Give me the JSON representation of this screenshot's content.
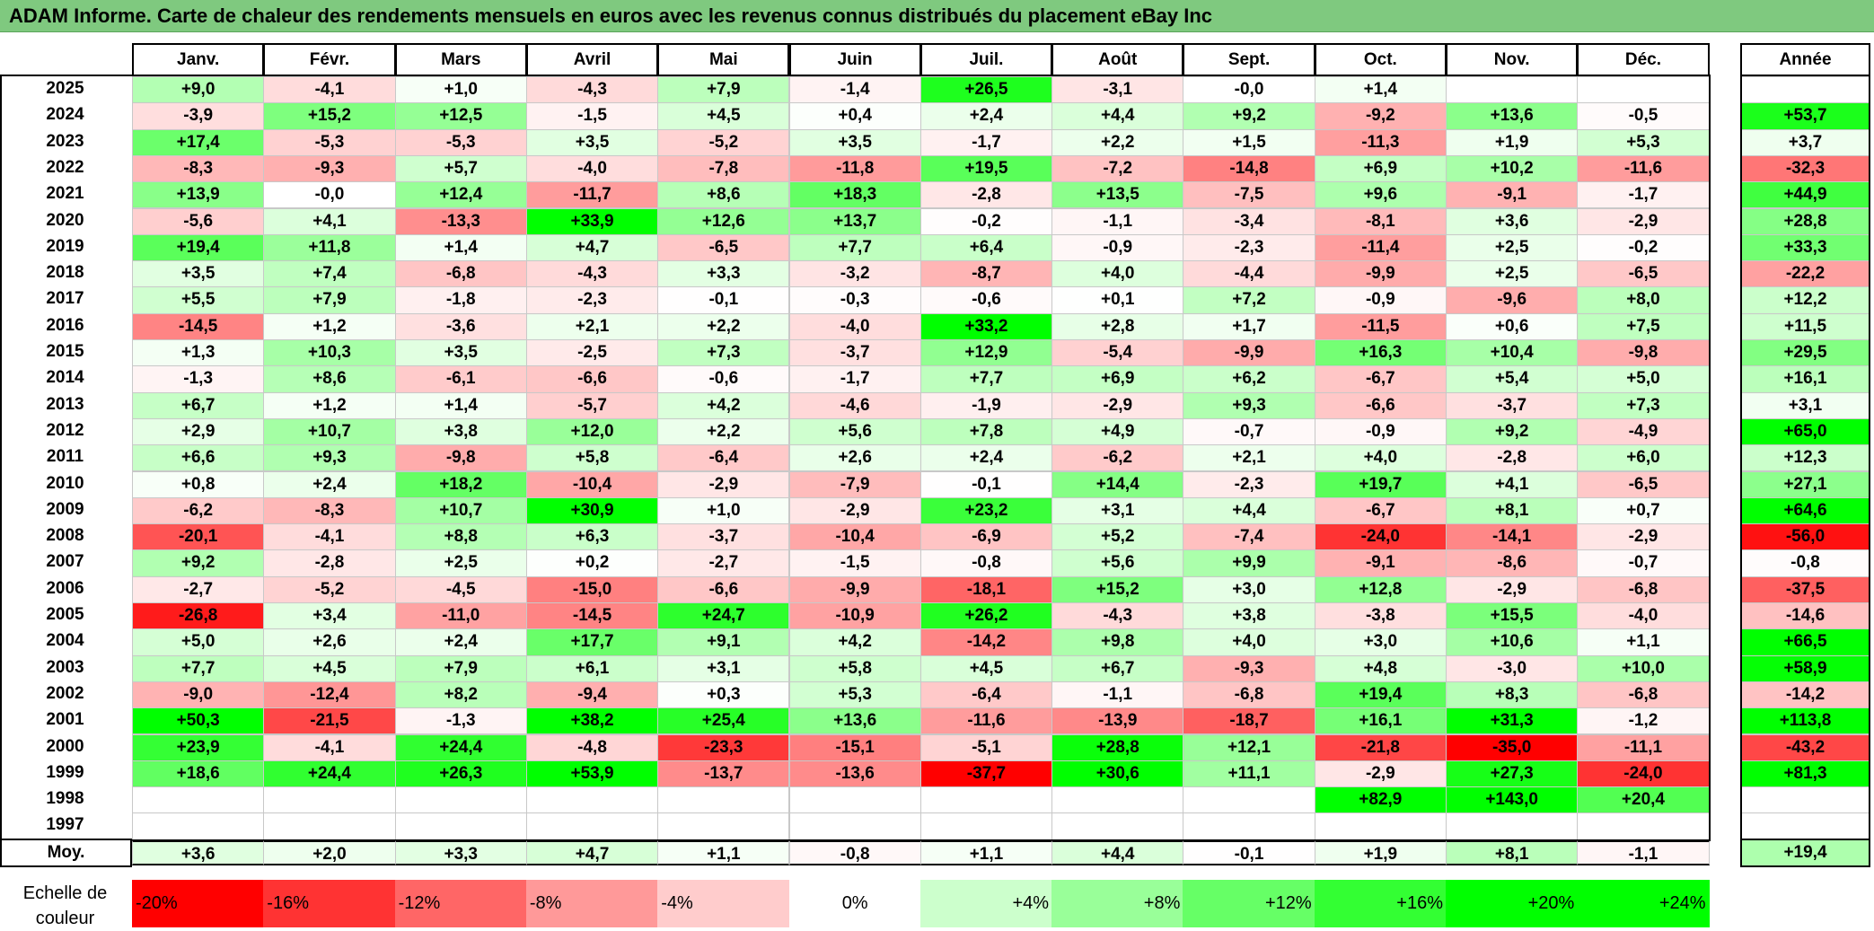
{
  "title": "ADAM Informe. Carte de chaleur des rendements mensuels en euros avec les revenus connus distribués du placement eBay Inc",
  "chart_data": {
    "type": "heatmap",
    "columns": [
      "Janv.",
      "Févr.",
      "Mars",
      "Avril",
      "Mai",
      "Juin",
      "Juil.",
      "Août",
      "Sept.",
      "Oct.",
      "Nov.",
      "Déc."
    ],
    "annual_label": "Année",
    "rows": [
      {
        "year": "2025",
        "values": [
          "+9,0",
          "-4,1",
          "+1,0",
          "-4,3",
          "+7,9",
          "-1,4",
          "+26,5",
          "-3,1",
          "-0,0",
          "+1,4",
          "",
          ""
        ],
        "annual": ""
      },
      {
        "year": "2024",
        "values": [
          "-3,9",
          "+15,2",
          "+12,5",
          "-1,5",
          "+4,5",
          "+0,4",
          "+2,4",
          "+4,4",
          "+9,2",
          "-9,2",
          "+13,6",
          "-0,5"
        ],
        "annual": "+53,7"
      },
      {
        "year": "2023",
        "values": [
          "+17,4",
          "-5,3",
          "-5,3",
          "+3,5",
          "-5,2",
          "+3,5",
          "-1,7",
          "+2,2",
          "+1,5",
          "-11,3",
          "+1,9",
          "+5,3"
        ],
        "annual": "+3,7"
      },
      {
        "year": "2022",
        "values": [
          "-8,3",
          "-9,3",
          "+5,7",
          "-4,0",
          "-7,8",
          "-11,8",
          "+19,5",
          "-7,2",
          "-14,8",
          "+6,9",
          "+10,2",
          "-11,6"
        ],
        "annual": "-32,3"
      },
      {
        "year": "2021",
        "values": [
          "+13,9",
          "-0,0",
          "+12,4",
          "-11,7",
          "+8,6",
          "+18,3",
          "-2,8",
          "+13,5",
          "-7,5",
          "+9,6",
          "-9,1",
          "-1,7"
        ],
        "annual": "+44,9"
      },
      {
        "year": "2020",
        "values": [
          "-5,6",
          "+4,1",
          "-13,3",
          "+33,9",
          "+12,6",
          "+13,7",
          "-0,2",
          "-1,1",
          "-3,4",
          "-8,1",
          "+3,6",
          "-2,9"
        ],
        "annual": "+28,8"
      },
      {
        "year": "2019",
        "values": [
          "+19,4",
          "+11,8",
          "+1,4",
          "+4,7",
          "-6,5",
          "+7,7",
          "+6,4",
          "-0,9",
          "-2,3",
          "-11,4",
          "+2,5",
          "-0,2"
        ],
        "annual": "+33,3"
      },
      {
        "year": "2018",
        "values": [
          "+3,5",
          "+7,4",
          "-6,8",
          "-4,3",
          "+3,3",
          "-3,2",
          "-8,7",
          "+4,0",
          "-4,4",
          "-9,9",
          "+2,5",
          "-6,5"
        ],
        "annual": "-22,2"
      },
      {
        "year": "2017",
        "values": [
          "+5,5",
          "+7,9",
          "-1,8",
          "-2,3",
          "-0,1",
          "-0,3",
          "-0,6",
          "+0,1",
          "+7,2",
          "-0,9",
          "-9,6",
          "+8,0"
        ],
        "annual": "+12,2"
      },
      {
        "year": "2016",
        "values": [
          "-14,5",
          "+1,2",
          "-3,6",
          "+2,1",
          "+2,2",
          "-4,0",
          "+33,2",
          "+2,8",
          "+1,7",
          "-11,5",
          "+0,6",
          "+7,5"
        ],
        "annual": "+11,5"
      },
      {
        "year": "2015",
        "values": [
          "+1,3",
          "+10,3",
          "+3,5",
          "-2,5",
          "+7,3",
          "-3,7",
          "+12,9",
          "-5,4",
          "-9,9",
          "+16,3",
          "+10,4",
          "-9,8"
        ],
        "annual": "+29,5"
      },
      {
        "year": "2014",
        "values": [
          "-1,3",
          "+8,6",
          "-6,1",
          "-6,6",
          "-0,6",
          "-1,7",
          "+7,7",
          "+6,9",
          "+6,2",
          "-6,7",
          "+5,4",
          "+5,0"
        ],
        "annual": "+16,1"
      },
      {
        "year": "2013",
        "values": [
          "+6,7",
          "+1,2",
          "+1,4",
          "-5,7",
          "+4,2",
          "-4,6",
          "-1,9",
          "-2,9",
          "+9,3",
          "-6,6",
          "-3,7",
          "+7,3"
        ],
        "annual": "+3,1"
      },
      {
        "year": "2012",
        "values": [
          "+2,9",
          "+10,7",
          "+3,8",
          "+12,0",
          "+2,2",
          "+5,6",
          "+7,8",
          "+4,9",
          "-0,7",
          "-0,9",
          "+9,2",
          "-4,9"
        ],
        "annual": "+65,0"
      },
      {
        "year": "2011",
        "values": [
          "+6,6",
          "+9,3",
          "-9,8",
          "+5,8",
          "-6,4",
          "+2,6",
          "+2,4",
          "-6,2",
          "+2,1",
          "+4,0",
          "-2,8",
          "+6,0"
        ],
        "annual": "+12,3"
      },
      {
        "year": "2010",
        "values": [
          "+0,8",
          "+2,4",
          "+18,2",
          "-10,4",
          "-2,9",
          "-7,9",
          "-0,1",
          "+14,4",
          "-2,3",
          "+19,7",
          "+4,1",
          "-6,5"
        ],
        "annual": "+27,1"
      },
      {
        "year": "2009",
        "values": [
          "-6,2",
          "-8,3",
          "+10,7",
          "+30,9",
          "+1,0",
          "-2,9",
          "+23,2",
          "+3,1",
          "+4,4",
          "-6,7",
          "+8,1",
          "+0,7"
        ],
        "annual": "+64,6"
      },
      {
        "year": "2008",
        "values": [
          "-20,1",
          "-4,1",
          "+8,8",
          "+6,3",
          "-3,7",
          "-10,4",
          "-6,9",
          "+5,2",
          "-7,4",
          "-24,0",
          "-14,1",
          "-2,9"
        ],
        "annual": "-56,0"
      },
      {
        "year": "2007",
        "values": [
          "+9,2",
          "-2,8",
          "+2,5",
          "+0,2",
          "-2,7",
          "-1,5",
          "-0,8",
          "+5,6",
          "+9,9",
          "-9,1",
          "-8,6",
          "-0,7"
        ],
        "annual": "-0,8"
      },
      {
        "year": "2006",
        "values": [
          "-2,7",
          "-5,2",
          "-4,5",
          "-15,0",
          "-6,6",
          "-9,9",
          "-18,1",
          "+15,2",
          "+3,0",
          "+12,8",
          "-2,9",
          "-6,8"
        ],
        "annual": "-37,5"
      },
      {
        "year": "2005",
        "values": [
          "-26,8",
          "+3,4",
          "-11,0",
          "-14,5",
          "+24,7",
          "-10,9",
          "+26,2",
          "-4,3",
          "+3,8",
          "-3,8",
          "+15,5",
          "-4,0"
        ],
        "annual": "-14,6"
      },
      {
        "year": "2004",
        "values": [
          "+5,0",
          "+2,6",
          "+2,4",
          "+17,7",
          "+9,1",
          "+4,2",
          "-14,2",
          "+9,8",
          "+4,0",
          "+3,0",
          "+10,6",
          "+1,1"
        ],
        "annual": "+66,5"
      },
      {
        "year": "2003",
        "values": [
          "+7,7",
          "+4,5",
          "+7,9",
          "+6,1",
          "+3,1",
          "+5,8",
          "+4,5",
          "+6,7",
          "-9,3",
          "+4,8",
          "-3,0",
          "+10,0"
        ],
        "annual": "+58,9"
      },
      {
        "year": "2002",
        "values": [
          "-9,0",
          "-12,4",
          "+8,2",
          "-9,4",
          "+0,3",
          "+5,3",
          "-6,4",
          "-1,1",
          "-6,8",
          "+19,4",
          "+8,3",
          "-6,8"
        ],
        "annual": "-14,2"
      },
      {
        "year": "2001",
        "values": [
          "+50,3",
          "-21,5",
          "-1,3",
          "+38,2",
          "+25,4",
          "+13,6",
          "-11,6",
          "-13,9",
          "-18,7",
          "+16,1",
          "+31,3",
          "-1,2"
        ],
        "annual": "+113,8"
      },
      {
        "year": "2000",
        "values": [
          "+23,9",
          "-4,1",
          "+24,4",
          "-4,8",
          "-23,3",
          "-15,1",
          "-5,1",
          "+28,8",
          "+12,1",
          "-21,8",
          "-35,0",
          "-11,1"
        ],
        "annual": "-43,2"
      },
      {
        "year": "1999",
        "values": [
          "+18,6",
          "+24,4",
          "+26,3",
          "+53,9",
          "-13,7",
          "-13,6",
          "-37,7",
          "+30,6",
          "+11,1",
          "-2,9",
          "+27,3",
          "-24,0"
        ],
        "annual": "+81,3"
      },
      {
        "year": "1998",
        "values": [
          "",
          "",
          "",
          "",
          "",
          "",
          "",
          "",
          "",
          "+82,9",
          "+143,0",
          "+20,4"
        ],
        "annual": ""
      },
      {
        "year": "1997",
        "values": [
          "",
          "",
          "",
          "",
          "",
          "",
          "",
          "",
          "",
          "",
          "",
          ""
        ],
        "annual": ""
      }
    ],
    "average": {
      "label": "Moy.",
      "values": [
        "+3,6",
        "+2,0",
        "+3,3",
        "+4,7",
        "+1,1",
        "-0,8",
        "+1,1",
        "+4,4",
        "-0,1",
        "+1,9",
        "+8,1",
        "-1,1"
      ],
      "annual": "+19,4"
    },
    "scale": {
      "label": "Echelle de couleur",
      "steps": [
        "-20%",
        "-16%",
        "-12%",
        "-8%",
        "-4%",
        "0%",
        "+4%",
        "+8%",
        "+12%",
        "+16%",
        "+20%",
        "+24%"
      ],
      "step_values": [
        -20,
        -16,
        -12,
        -8,
        -4,
        0,
        4,
        8,
        12,
        16,
        20,
        24
      ]
    },
    "colors": {
      "negative": "#ff0000",
      "positive": "#00ff00",
      "neutral": "#ffffff",
      "title_bar": "#7fc97f"
    }
  }
}
